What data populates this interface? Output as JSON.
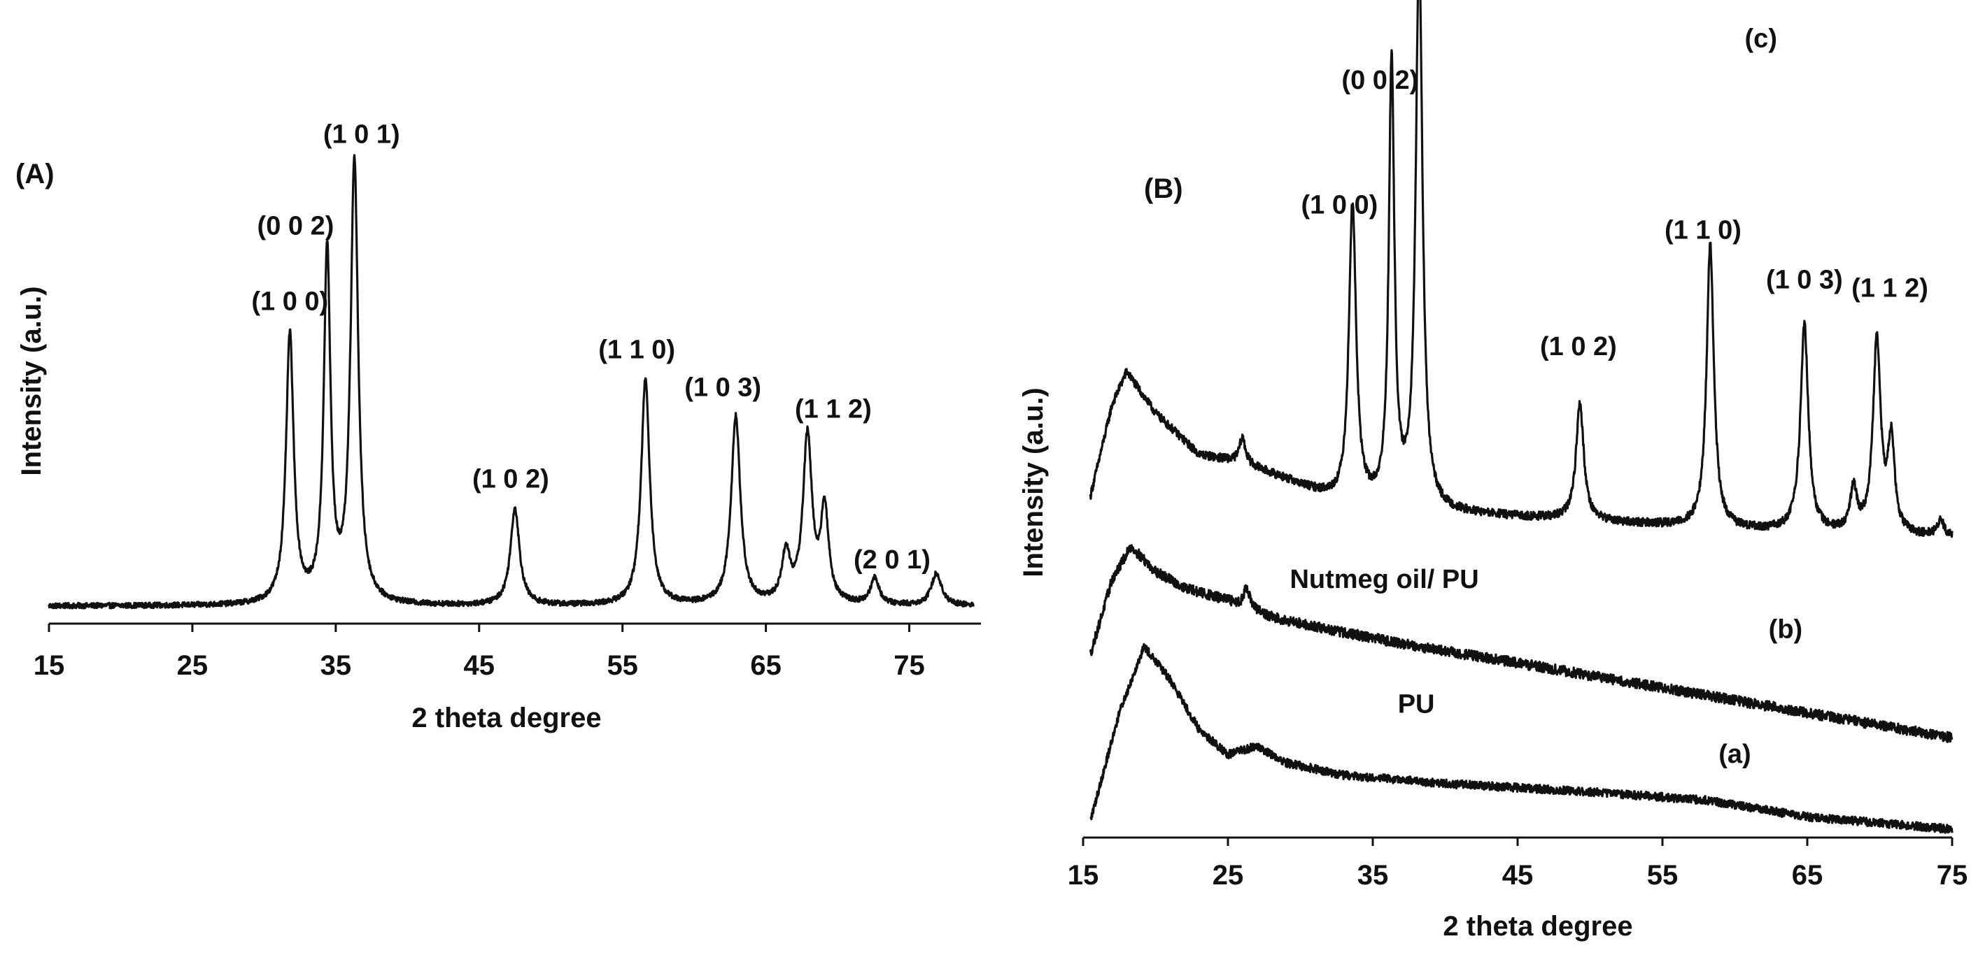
{
  "chart_data": [
    {
      "type": "line",
      "panel_label": "(A)",
      "xlabel": "2 theta degree",
      "ylabel": "Intensity (a.u.)",
      "xlim": [
        15,
        80
      ],
      "x_ticks": [
        15,
        25,
        35,
        45,
        55,
        65,
        75
      ],
      "y_range": [
        0,
        100
      ],
      "grid": false,
      "series": [
        {
          "baseline": 3,
          "noise": 0.5,
          "peaks": [
            {
              "x": 31.8,
              "height": 50,
              "width": 0.32
            },
            {
              "x": 34.4,
              "height": 65,
              "width": 0.28
            },
            {
              "x": 36.3,
              "height": 82,
              "width": 0.32
            },
            {
              "x": 47.5,
              "height": 18,
              "width": 0.38
            },
            {
              "x": 56.6,
              "height": 42,
              "width": 0.36
            },
            {
              "x": 62.9,
              "height": 35,
              "width": 0.38
            },
            {
              "x": 66.4,
              "height": 9,
              "width": 0.35
            },
            {
              "x": 67.9,
              "height": 31,
              "width": 0.38
            },
            {
              "x": 69.1,
              "height": 17,
              "width": 0.33
            },
            {
              "x": 72.6,
              "height": 5,
              "width": 0.35
            },
            {
              "x": 76.9,
              "height": 6,
              "width": 0.42
            }
          ]
        }
      ],
      "annotations": [
        {
          "text": "(1 0 0)",
          "x": 31.8,
          "y": 58
        },
        {
          "text": "(0 0 2)",
          "x": 32.2,
          "y": 72
        },
        {
          "text": "(1 0 1)",
          "x": 36.8,
          "y": 89
        },
        {
          "text": "(1 0 2)",
          "x": 47.2,
          "y": 25
        },
        {
          "text": "(1 1 0)",
          "x": 56.0,
          "y": 49
        },
        {
          "text": "(1 0 3)",
          "x": 62.0,
          "y": 42
        },
        {
          "text": "(1 1 2)",
          "x": 69.7,
          "y": 38
        },
        {
          "text": "(2 0 1)",
          "x": 73.8,
          "y": 10
        }
      ]
    },
    {
      "type": "line",
      "panel_label": "(B)",
      "xlabel": "2 theta degree",
      "ylabel": "Intensity (a.u.)",
      "xlim": [
        15,
        75
      ],
      "x_ticks": [
        15,
        25,
        35,
        45,
        55,
        65,
        75
      ],
      "y_range": [
        0,
        100
      ],
      "grid": false,
      "series": [
        {
          "label": "(c)",
          "baseline_points": [
            [
              15.5,
              42
            ],
            [
              17,
              53
            ],
            [
              18,
              57
            ],
            [
              20,
              52
            ],
            [
              23,
              47
            ],
            [
              26,
              46
            ],
            [
              29,
              44
            ],
            [
              33,
              41
            ],
            [
              40,
              40
            ],
            [
              50,
              39
            ],
            [
              60,
              38
            ],
            [
              75,
              37
            ]
          ],
          "noise": 0.5,
          "peaks": [
            {
              "x": 26.0,
              "height": 3,
              "width": 0.25
            },
            {
              "x": 33.6,
              "height": 36,
              "width": 0.3
            },
            {
              "x": 36.3,
              "height": 53,
              "width": 0.23
            },
            {
              "x": 38.2,
              "height": 67,
              "width": 0.28
            },
            {
              "x": 49.3,
              "height": 14,
              "width": 0.32
            },
            {
              "x": 58.3,
              "height": 34,
              "width": 0.3
            },
            {
              "x": 64.8,
              "height": 25,
              "width": 0.32
            },
            {
              "x": 68.2,
              "height": 5,
              "width": 0.28
            },
            {
              "x": 69.8,
              "height": 23,
              "width": 0.32
            },
            {
              "x": 70.8,
              "height": 11,
              "width": 0.28
            },
            {
              "x": 74.2,
              "height": 2,
              "width": 0.3
            }
          ]
        },
        {
          "label": "(b)",
          "baseline_points": [
            [
              15.5,
              23
            ],
            [
              17,
              32
            ],
            [
              18.3,
              36
            ],
            [
              20,
              33
            ],
            [
              22,
              31
            ],
            [
              25,
              29.5
            ],
            [
              28,
              27.5
            ],
            [
              32,
              26
            ],
            [
              38,
              24
            ],
            [
              45,
              22
            ],
            [
              55,
              19
            ],
            [
              65,
              16
            ],
            [
              75,
              13
            ]
          ],
          "noise": 0.6,
          "peaks": [
            {
              "x": 26.3,
              "height": 2.5,
              "width": 0.25
            }
          ]
        },
        {
          "label": "(a)",
          "baseline_points": [
            [
              15.5,
              3
            ],
            [
              17.5,
              16
            ],
            [
              19.2,
              24
            ],
            [
              21,
              20
            ],
            [
              23,
              14
            ],
            [
              25,
              11
            ],
            [
              27,
              12
            ],
            [
              29,
              10
            ],
            [
              33,
              8.5
            ],
            [
              40,
              7.5
            ],
            [
              50,
              6.5
            ],
            [
              58,
              5.5
            ],
            [
              65,
              3.5
            ],
            [
              75,
              2
            ]
          ],
          "noise": 0.5,
          "peaks": []
        }
      ],
      "annotations": [
        {
          "text": "(1 0 1)",
          "x": 38.2,
          "y": 103
        },
        {
          "text": "(0 0 2)",
          "x": 35.5,
          "y": 91
        },
        {
          "text": "(1 0 0)",
          "x": 32.7,
          "y": 76
        },
        {
          "text": "(1 0 2)",
          "x": 49.2,
          "y": 59
        },
        {
          "text": "(1 1 0)",
          "x": 57.8,
          "y": 73
        },
        {
          "text": "(1 0 3)",
          "x": 64.8,
          "y": 67
        },
        {
          "text": "(1 1 2)",
          "x": 70.7,
          "y": 66
        },
        {
          "text": "(c)",
          "x": 61.8,
          "y": 96
        },
        {
          "text": "Nutmeg oil/ PU",
          "x": 35.8,
          "y": 31
        },
        {
          "text": "(b)",
          "x": 63.5,
          "y": 25
        },
        {
          "text": "PU",
          "x": 38.0,
          "y": 16
        },
        {
          "text": "(a)",
          "x": 60.0,
          "y": 10
        }
      ]
    }
  ]
}
